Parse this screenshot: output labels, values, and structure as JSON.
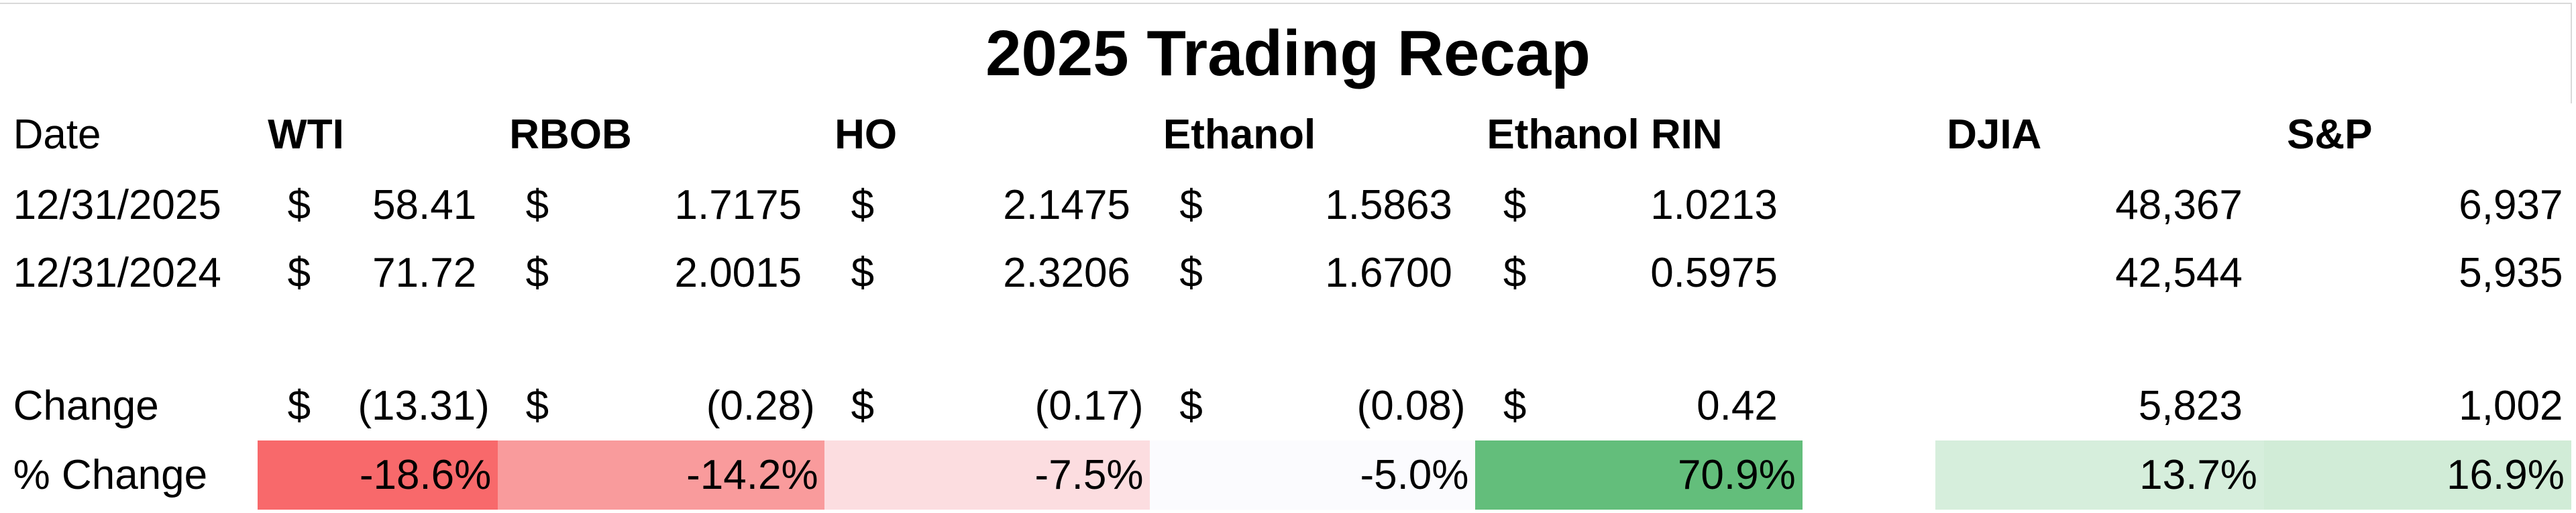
{
  "title": "2025 Trading Recap",
  "table": {
    "header": [
      "Date",
      "WTI",
      "RBOB",
      "HO",
      "Ethanol",
      "Ethanol RIN",
      "DJIA",
      "S&P"
    ],
    "rows": [
      {
        "label": "12/31/2025",
        "cells": [
          {
            "symbol": "$",
            "value": "58.41"
          },
          {
            "symbol": "$",
            "value": "1.7175"
          },
          {
            "symbol": "$",
            "value": "2.1475"
          },
          {
            "symbol": "$",
            "value": "1.5863"
          },
          {
            "symbol": "$",
            "value": "1.0213"
          },
          {
            "value": "48,367"
          },
          {
            "value": "6,937"
          }
        ]
      },
      {
        "label": "12/31/2024",
        "cells": [
          {
            "symbol": "$",
            "value": "71.72"
          },
          {
            "symbol": "$",
            "value": "2.0015"
          },
          {
            "symbol": "$",
            "value": "2.3206"
          },
          {
            "symbol": "$",
            "value": "1.6700"
          },
          {
            "symbol": "$",
            "value": "0.5975"
          },
          {
            "value": "42,544"
          },
          {
            "value": "5,935"
          }
        ]
      },
      {
        "label": "Change",
        "cells": [
          {
            "symbol": "$",
            "value": "(13.31)"
          },
          {
            "symbol": "$",
            "value": "(0.28)"
          },
          {
            "symbol": "$",
            "value": "(0.17)"
          },
          {
            "symbol": "$",
            "value": "(0.08)"
          },
          {
            "symbol": "$",
            "value": "0.42"
          },
          {
            "value": "5,823"
          },
          {
            "value": "1,002"
          }
        ]
      },
      {
        "label": "% Change",
        "cells": [
          {
            "value": "-18.6%",
            "fill": "#f8696b"
          },
          {
            "value": "-14.2%",
            "fill": "#f99b9c"
          },
          {
            "value": "-7.5%",
            "fill": "#fcdde0"
          },
          {
            "value": "-5.0%",
            "fill": "#fbfbfe"
          },
          {
            "value": "70.9%",
            "fill": "#63be7b"
          },
          {
            "value": "13.7%",
            "fill": "#d6eedc"
          },
          {
            "value": "16.9%",
            "fill": "#d1ecd7"
          }
        ]
      }
    ]
  }
}
